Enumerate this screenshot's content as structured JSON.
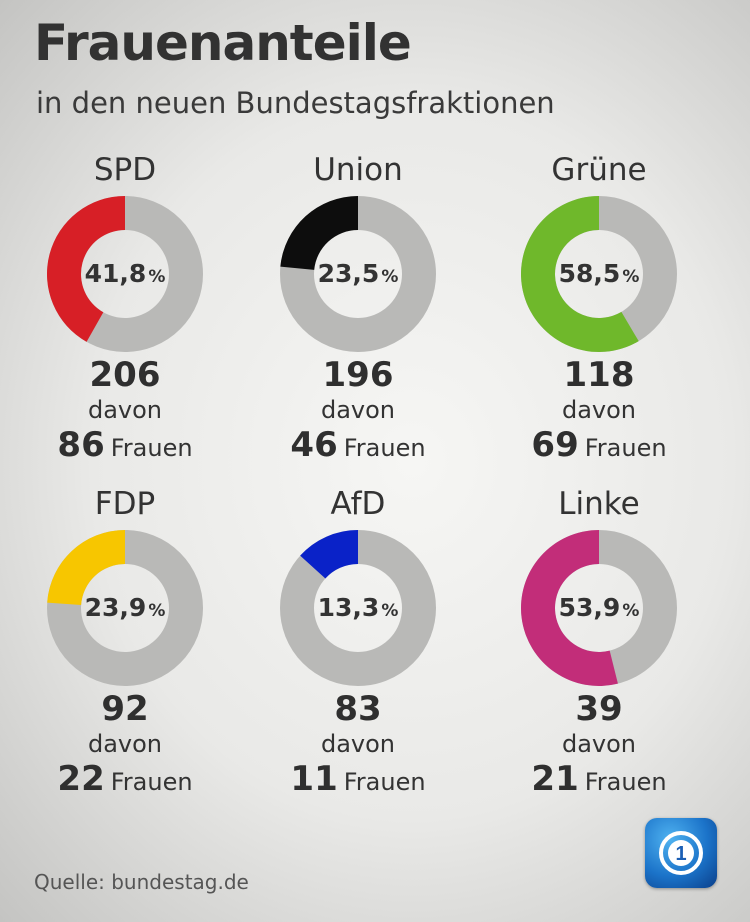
{
  "title": "Frauenanteile",
  "subtitle": "in den neuen Bundestagsfraktionen",
  "source": "Quelle: bundestag.de",
  "logo_label": "1",
  "chart_data": {
    "type": "pie",
    "title": "Frauenanteile",
    "subtitle": "in den neuen Bundestagsfraktionen",
    "unit": "%",
    "davon_label": "davon",
    "frauen_label": "Frauen",
    "rest_color": "#b9b9b7",
    "parties": [
      {
        "name": "SPD",
        "share_label": "41,8",
        "share": 41.8,
        "total": "206",
        "women": "86",
        "color": "#d71f26"
      },
      {
        "name": "Union",
        "share_label": "23,5",
        "share": 23.5,
        "total": "196",
        "women": "46",
        "color": "#0d0d0d"
      },
      {
        "name": "Grüne",
        "share_label": "58,5",
        "share": 58.5,
        "total": "118",
        "women": "69",
        "color": "#6fb82b"
      },
      {
        "name": "FDP",
        "share_label": "23,9",
        "share": 23.9,
        "total": "92",
        "women": "22",
        "color": "#f7c600"
      },
      {
        "name": "AfD",
        "share_label": "13,3",
        "share": 13.3,
        "total": "83",
        "women": "11",
        "color": "#0a22c8"
      },
      {
        "name": "Linke",
        "share_label": "53,9",
        "share": 53.9,
        "total": "39",
        "women": "21",
        "color": "#c22d79"
      }
    ]
  }
}
